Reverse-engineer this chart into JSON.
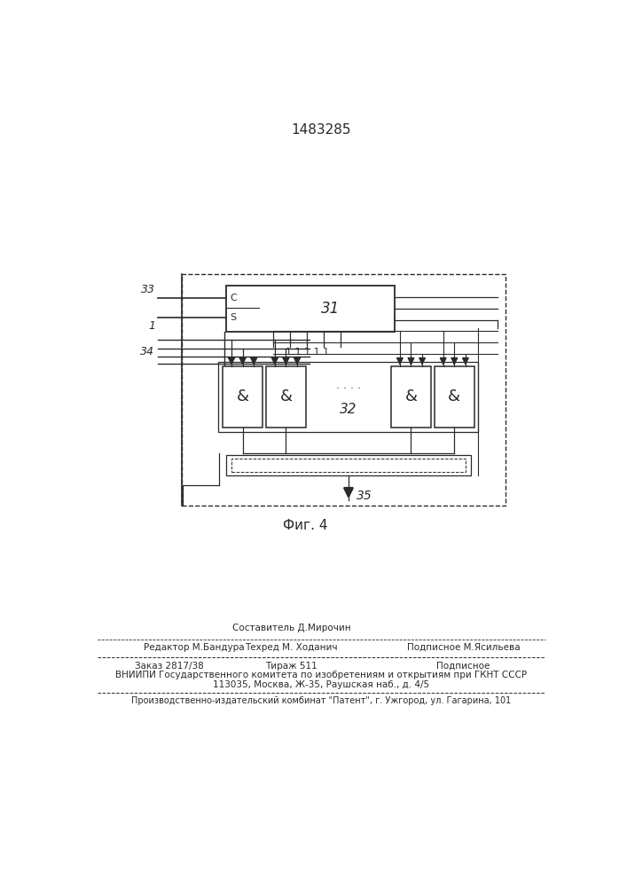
{
  "title": "1483285",
  "fig_label": "Фиг. 4",
  "bg": "#ffffff",
  "lc": "#2a2a2a",
  "footer": {
    "sestavitel": "Составитель Д.Мирочин",
    "redaktor": "Редактор М.Бандура",
    "tehred": "Техред М. Ходанич",
    "podpisnoe": "Подписное М.Ясильева",
    "zakaz": "Заказ 2817/38",
    "tirazh": "Тираж 511",
    "podp2": "Подписное",
    "vniip1": "ВНИИПИ Государственного комитета по изобретениям и открытиям при ГКНТ СССР",
    "vniip2": "113035, Москва, Ж-35, Раушская наб., д. 4/5",
    "patent": "Производственно-издательский комбинат \"Патент\", г. Ужгород, ул. Гагарина, 101"
  }
}
